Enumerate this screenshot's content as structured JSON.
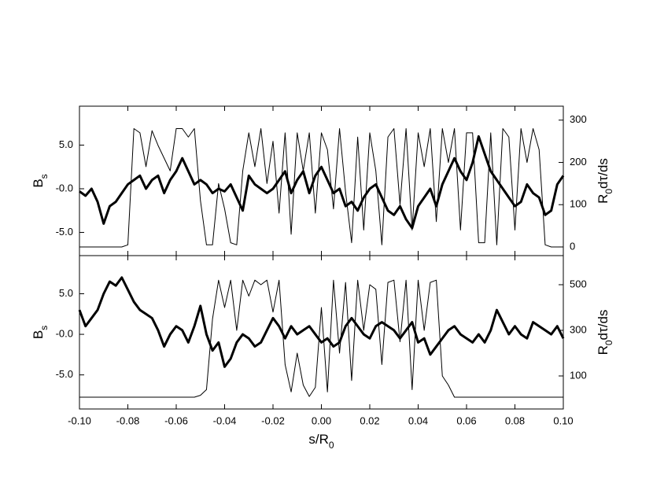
{
  "chart_data": [
    {
      "type": "line",
      "ylabel": [
        "B",
        "s"
      ],
      "y2label": [
        "R",
        "0",
        "dτ/ds"
      ],
      "xlim": [
        -0.1,
        0.1
      ],
      "ylim": [
        -7.66,
        9.46
      ],
      "y2lim": [
        -20.5,
        333
      ],
      "yticks": [
        {
          "value": 5,
          "label": "5.0"
        },
        {
          "value": 0,
          "label": "-0.0"
        },
        {
          "value": -5,
          "label": "-5.0"
        }
      ],
      "y2ticks": [
        0,
        100,
        200,
        300
      ],
      "x": [
        -0.1,
        -0.0975,
        -0.095,
        -0.0925,
        -0.09,
        -0.0875,
        -0.085,
        -0.0825,
        -0.08,
        -0.0775,
        -0.075,
        -0.0725,
        -0.07,
        -0.0675,
        -0.065,
        -0.0625,
        -0.06,
        -0.0575,
        -0.055,
        -0.0525,
        -0.05,
        -0.0475,
        -0.045,
        -0.0425,
        -0.04,
        -0.0375,
        -0.035,
        -0.0325,
        -0.03,
        -0.0275,
        -0.025,
        -0.0225,
        -0.02,
        -0.0175,
        -0.015,
        -0.0125,
        -0.01,
        -0.0075,
        -0.005,
        -0.0025,
        0,
        0.0025,
        0.005,
        0.0075,
        0.01,
        0.0125,
        0.015,
        0.0175,
        0.02,
        0.0225,
        0.025,
        0.0275,
        0.03,
        0.0325,
        0.035,
        0.0375,
        0.04,
        0.0425,
        0.045,
        0.0475,
        0.05,
        0.0525,
        0.055,
        0.0575,
        0.06,
        0.0625,
        0.065,
        0.0675,
        0.07,
        0.0725,
        0.075,
        0.0775,
        0.08,
        0.0825,
        0.085,
        0.0875,
        0.09,
        0.0925,
        0.095,
        0.0975,
        0.1
      ],
      "series": [
        {
          "color": "#000000",
          "width": 1,
          "axis": "y2",
          "values": [
            0,
            0,
            0,
            0,
            0,
            0,
            0,
            0,
            5,
            280,
            270,
            190,
            275,
            240,
            210,
            180,
            280,
            280,
            260,
            280,
            110,
            5,
            5,
            150,
            90,
            10,
            5,
            180,
            270,
            190,
            280,
            150,
            250,
            80,
            270,
            30,
            270,
            180,
            270,
            80,
            270,
            230,
            90,
            280,
            130,
            10,
            260,
            40,
            270,
            180,
            5,
            260,
            280,
            100,
            280,
            40,
            270,
            190,
            280,
            60,
            280,
            200,
            280,
            40,
            270,
            270,
            10,
            10,
            270,
            5,
            280,
            260,
            40,
            280,
            200,
            280,
            230,
            5,
            0,
            0,
            0
          ]
        },
        {
          "color": "#000000",
          "width": 3,
          "values": [
            -0.3,
            -0.8,
            0,
            -1.5,
            -4,
            -2,
            -1.5,
            -0.5,
            0.5,
            1,
            1.5,
            0,
            1,
            1.5,
            -0.5,
            1,
            2,
            3.5,
            2,
            0.5,
            1,
            0.5,
            -0.5,
            0,
            -0.3,
            0.5,
            -1,
            -2.5,
            1.5,
            0.5,
            0,
            -0.5,
            0,
            1,
            2,
            -0.5,
            1,
            2,
            -0.5,
            1.5,
            2.5,
            1,
            -0.5,
            0,
            -2,
            -1.5,
            -2.5,
            -1,
            0,
            0.5,
            -1,
            -2.5,
            -3,
            -2,
            -3.5,
            -4.5,
            -2,
            -1,
            0,
            -2,
            0.5,
            2,
            3.5,
            2,
            1,
            3,
            6,
            4,
            2,
            1,
            0,
            -1,
            -2,
            -1.5,
            0.5,
            -0.5,
            -1,
            -3,
            -2.5,
            0.5,
            1.5
          ]
        }
      ]
    },
    {
      "type": "line",
      "ylabel": [
        "B",
        "s"
      ],
      "y2label": [
        "R",
        "0",
        "dτ/ds"
      ],
      "xlabel": [
        "s/R",
        "0"
      ],
      "xlim": [
        -0.1,
        0.1
      ],
      "ylim": [
        -9.2,
        9.7
      ],
      "y2lim": [
        -44.8,
        627.6
      ],
      "xticks": [
        {
          "value": -0.1,
          "label": "-0.10"
        },
        {
          "value": -0.08,
          "label": "-0.08"
        },
        {
          "value": -0.06,
          "label": "-0.06"
        },
        {
          "value": -0.04,
          "label": "-0.04"
        },
        {
          "value": -0.02,
          "label": "-0.02"
        },
        {
          "value": 0,
          "label": "0.00"
        },
        {
          "value": 0.02,
          "label": "0.02"
        },
        {
          "value": 0.04,
          "label": "0.04"
        },
        {
          "value": 0.06,
          "label": "0.06"
        },
        {
          "value": 0.08,
          "label": "0.08"
        },
        {
          "value": 0.1,
          "label": "0.10"
        }
      ],
      "yticks": [
        {
          "value": 5,
          "label": "5.0"
        },
        {
          "value": 0,
          "label": "-0.0"
        },
        {
          "value": -5,
          "label": "-5.0"
        }
      ],
      "y2ticks": [
        100,
        300,
        500
      ],
      "x": [
        -0.1,
        -0.0975,
        -0.095,
        -0.0925,
        -0.09,
        -0.0875,
        -0.085,
        -0.0825,
        -0.08,
        -0.0775,
        -0.075,
        -0.0725,
        -0.07,
        -0.0675,
        -0.065,
        -0.0625,
        -0.06,
        -0.0575,
        -0.055,
        -0.0525,
        -0.05,
        -0.0475,
        -0.045,
        -0.0425,
        -0.04,
        -0.0375,
        -0.035,
        -0.0325,
        -0.03,
        -0.0275,
        -0.025,
        -0.0225,
        -0.02,
        -0.0175,
        -0.015,
        -0.0125,
        -0.01,
        -0.0075,
        -0.005,
        -0.0025,
        0,
        0.0025,
        0.005,
        0.0075,
        0.01,
        0.0125,
        0.015,
        0.0175,
        0.02,
        0.0225,
        0.025,
        0.0275,
        0.03,
        0.0325,
        0.035,
        0.0375,
        0.04,
        0.0425,
        0.045,
        0.0475,
        0.05,
        0.0525,
        0.055,
        0.0575,
        0.06,
        0.0625,
        0.065,
        0.0675,
        0.07,
        0.0725,
        0.075,
        0.0775,
        0.08,
        0.0825,
        0.085,
        0.0875,
        0.09,
        0.0925,
        0.095,
        0.0975,
        0.1
      ],
      "series": [
        {
          "color": "#000000",
          "width": 1,
          "axis": "y2",
          "values": [
            7,
            7,
            7,
            7,
            7,
            7,
            7,
            7,
            7,
            7,
            7,
            7,
            7,
            7,
            7,
            7,
            7,
            7,
            7,
            7,
            15,
            40,
            350,
            520,
            400,
            520,
            300,
            520,
            450,
            520,
            500,
            520,
            380,
            520,
            150,
            30,
            200,
            60,
            10,
            50,
            400,
            30,
            520,
            200,
            510,
            80,
            520,
            300,
            500,
            480,
            150,
            510,
            520,
            250,
            520,
            40,
            520,
            300,
            510,
            520,
            100,
            60,
            7,
            7,
            7,
            7,
            7,
            7,
            7,
            7,
            7,
            7,
            7,
            7,
            7,
            7,
            7,
            7,
            7,
            7,
            7
          ]
        },
        {
          "color": "#000000",
          "width": 3,
          "values": [
            3,
            1,
            2,
            3,
            5,
            6.5,
            6,
            7,
            5.5,
            4,
            3,
            2.5,
            2,
            0.5,
            -1.5,
            0,
            1,
            0.5,
            -1,
            1,
            3.5,
            0,
            -2,
            -1,
            -4,
            -3,
            -1,
            0,
            -0.5,
            -1.5,
            -1,
            0.5,
            2,
            1,
            -0.5,
            1,
            0,
            0.5,
            1,
            0,
            -1,
            -0.5,
            -1.5,
            -1,
            1,
            2,
            1,
            0,
            -0.5,
            1,
            1.5,
            1,
            0.5,
            -0.5,
            0.5,
            1.5,
            -1,
            -0.5,
            -2.5,
            -1.5,
            -0.5,
            0.5,
            1,
            0,
            -0.5,
            -1,
            0,
            -1,
            0.5,
            3,
            1.5,
            0,
            1,
            0,
            -0.5,
            1.5,
            1,
            0.5,
            0,
            1,
            -0.5
          ]
        }
      ]
    }
  ]
}
